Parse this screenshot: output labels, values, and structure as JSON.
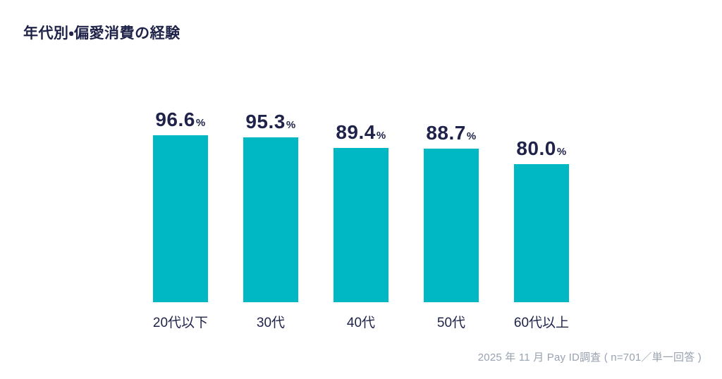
{
  "page": {
    "title": "年代別・偏愛消費の経験",
    "source_note": "2025 年 11 月 Pay ID調査 ( n=701／単一回答 )"
  },
  "chart_data": {
    "type": "bar",
    "title": "年代別・偏愛消費の経験",
    "categories": [
      "20代以下",
      "30代",
      "40代",
      "50代",
      "60代以上"
    ],
    "values": [
      96.6,
      95.3,
      89.4,
      88.7,
      80.0
    ],
    "unit": "%",
    "value_label_format": "one_decimal_with_small_percent",
    "ylim": [
      0,
      100
    ],
    "grid": false,
    "legend": false,
    "bar_color": "#00b7c4",
    "text_color": "#1f2349",
    "source_note_color": "#99a2b0",
    "source_note": "2025 年 11 月 Pay ID調査 ( n=701／単一回答 )"
  }
}
